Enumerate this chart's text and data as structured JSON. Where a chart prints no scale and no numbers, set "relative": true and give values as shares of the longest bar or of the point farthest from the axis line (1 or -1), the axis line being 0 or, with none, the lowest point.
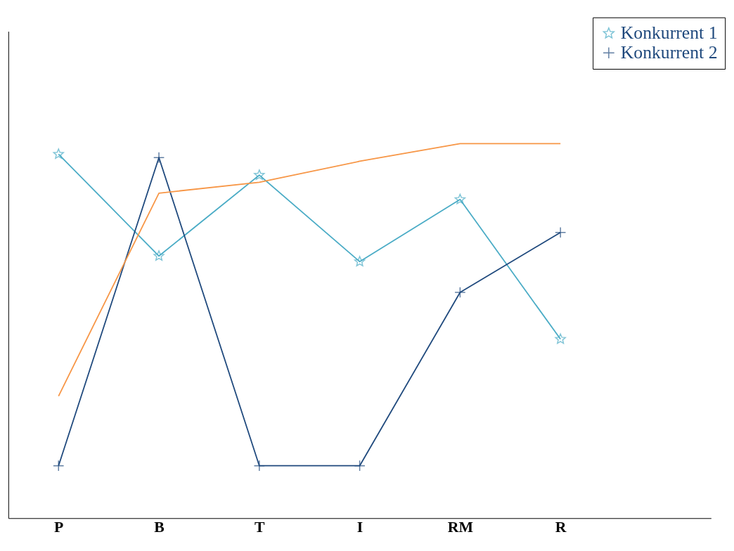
{
  "chart_data": {
    "type": "line",
    "relative": true,
    "categories": [
      "P",
      "B",
      "T",
      "I",
      "RM",
      "R"
    ],
    "series": [
      {
        "name": "Konkurrent 1",
        "color": "#4bacc6",
        "marker": "star",
        "values": [
          0.972,
          0.7,
          0.916,
          0.685,
          0.851,
          0.478
        ]
      },
      {
        "name": "Konkurrent 2",
        "color": "#1f497d",
        "marker": "cross",
        "values": [
          0.14,
          0.963,
          0.14,
          0.14,
          0.603,
          0.763
        ]
      },
      {
        "color": "#f79646",
        "marker": "none",
        "values": [
          0.326,
          0.868,
          0.897,
          0.953,
          1,
          1
        ]
      }
    ],
    "legend": "top right",
    "grid": false
  }
}
